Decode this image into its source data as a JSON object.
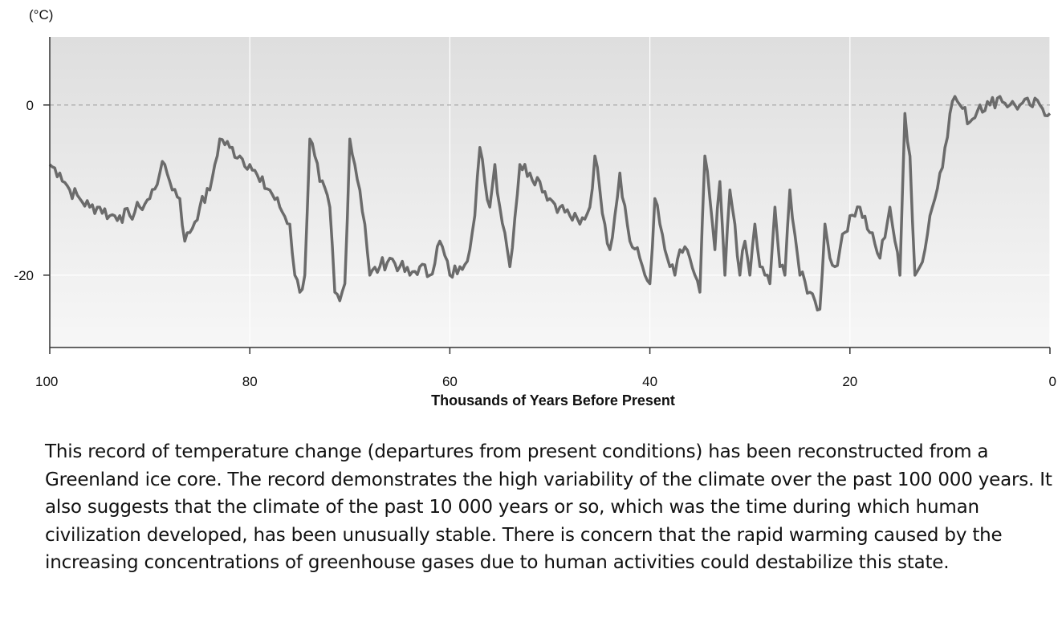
{
  "chart_data": {
    "type": "line",
    "title": "",
    "ylabel": "(°C)",
    "xlabel": "Thousands of Years Before Present",
    "xlim": [
      100,
      0
    ],
    "ylim": [
      -28.5,
      8
    ],
    "x_ticks": [
      100,
      80,
      60,
      40,
      20,
      0
    ],
    "y_ticks": [
      0,
      -20
    ],
    "reference_line_y": 0,
    "grid": true,
    "line_color": "#6b6b6b",
    "series": [
      {
        "x": [
          100,
          99,
          98,
          97,
          96,
          95,
          94,
          93,
          92,
          91,
          90,
          89,
          88.5,
          88,
          87,
          86.5,
          86,
          85,
          84,
          83.5,
          83,
          82,
          81,
          80,
          79,
          78,
          77,
          76,
          75.5,
          75,
          74.5,
          74,
          73.5,
          73,
          72,
          71.5,
          71,
          70.5,
          70,
          69.5,
          69,
          68.5,
          68,
          67,
          66,
          65,
          64,
          63,
          62,
          61,
          60,
          59,
          58,
          57.5,
          57,
          56.5,
          56,
          55.5,
          55,
          54.5,
          54,
          53,
          52,
          51,
          50,
          49,
          48,
          47,
          46,
          45.5,
          45,
          44.5,
          44,
          43.5,
          43,
          42,
          41,
          40.5,
          40,
          39.5,
          39,
          38.5,
          38,
          37.5,
          37,
          36,
          35,
          34.5,
          34,
          33.5,
          33,
          32.5,
          32,
          31.5,
          31,
          30.5,
          30,
          29.5,
          29,
          28.5,
          28,
          27.5,
          27,
          26.5,
          26,
          25,
          24,
          23.5,
          23,
          22.5,
          22,
          21.5,
          21,
          20,
          19,
          18,
          17,
          16,
          15.5,
          15,
          14.5,
          14,
          13.5,
          13,
          12.5,
          12,
          11.5,
          11,
          10.5,
          10,
          9.5,
          9,
          8,
          7,
          6,
          5,
          4,
          3,
          2,
          1,
          0
        ],
        "y": [
          -7,
          -8,
          -10,
          -11,
          -12,
          -12,
          -13,
          -13,
          -13,
          -12,
          -11,
          -8,
          -7,
          -9,
          -11,
          -16,
          -15,
          -12,
          -10,
          -7,
          -4,
          -5,
          -6,
          -7,
          -9,
          -10,
          -12,
          -14,
          -20,
          -22,
          -20,
          -4,
          -6,
          -9,
          -12,
          -22,
          -23,
          -21,
          -4,
          -7,
          -10,
          -14,
          -20,
          -19,
          -18,
          -19,
          -20,
          -19,
          -20,
          -16,
          -20,
          -19,
          -17,
          -13,
          -5,
          -9,
          -12,
          -7,
          -12,
          -15,
          -19,
          -7,
          -8,
          -9,
          -11,
          -12,
          -13,
          -14,
          -12,
          -6,
          -10,
          -14,
          -17,
          -13,
          -8,
          -16,
          -18,
          -20,
          -21,
          -11,
          -14,
          -17,
          -19,
          -20,
          -17,
          -18,
          -22,
          -6,
          -11,
          -17,
          -9,
          -20,
          -10,
          -14,
          -20,
          -16,
          -20,
          -14,
          -19,
          -20,
          -21,
          -12,
          -19,
          -20,
          -10,
          -20,
          -22,
          -23,
          -24,
          -14,
          -18,
          -19,
          -17,
          -13,
          -12,
          -15,
          -18,
          -12,
          -16,
          -20,
          -1,
          -6,
          -20,
          -19,
          -17,
          -13,
          -11,
          -8,
          -5,
          -1,
          1,
          0,
          -2,
          0,
          0,
          1,
          0,
          0,
          0,
          0,
          -1
        ],
        "name": ""
      }
    ]
  },
  "caption": "This record of temperature change (departures from present conditions) has been reconstructed from a Greenland ice core.  The record demonstrates the high variability of the climate over the past 100 000 years.  It also suggests that the climate of the past 10 000 years or so, which was the time during which human civilization developed, has been unusually stable.  There is concern that the rapid warming caused by the increasing concentrations of greenhouse gases due to human activities could destabilize this state."
}
